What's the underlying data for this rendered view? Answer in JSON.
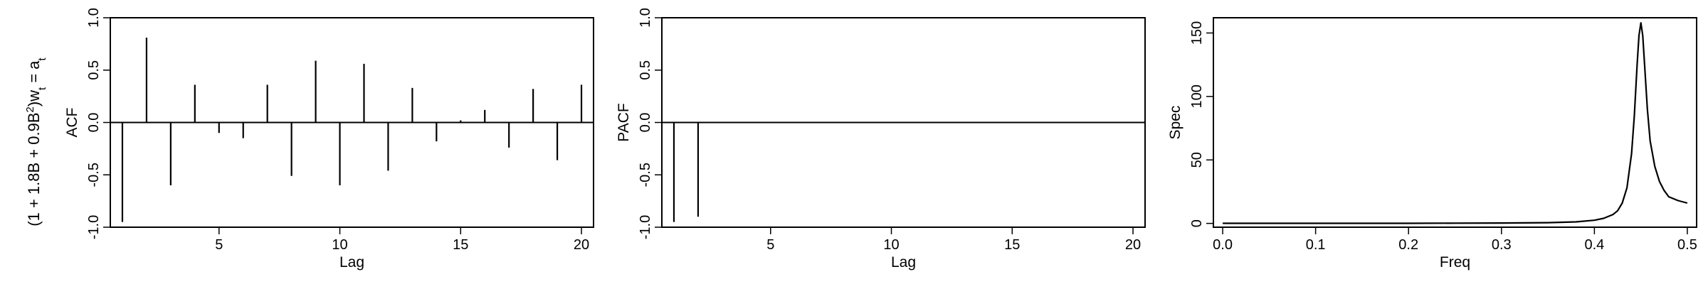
{
  "row_label": {
    "prefix": "(1 + 1.8B + 0.9B",
    "power": "2",
    "middle": ")w",
    "w_sub": "t",
    "eq": " = a",
    "a_sub": "t"
  },
  "chart_data": [
    {
      "type": "bar",
      "style": "spikes",
      "ylabel": "ACF",
      "xlabel": "Lag",
      "xlim": [
        0.5,
        20.5
      ],
      "ylim": [
        -1.0,
        1.0
      ],
      "xticks": [
        "5",
        "10",
        "15",
        "20"
      ],
      "yticks": [
        "-1.0",
        "-0.5",
        "0.0",
        "0.5",
        "1.0"
      ],
      "zero_line": true,
      "grid": false,
      "x": [
        1,
        2,
        3,
        4,
        5,
        6,
        7,
        8,
        9,
        10,
        11,
        12,
        13,
        14,
        15,
        16,
        17,
        18,
        19,
        20
      ],
      "values": [
        -0.95,
        0.81,
        -0.6,
        0.36,
        -0.1,
        -0.15,
        0.36,
        -0.51,
        0.59,
        -0.6,
        0.56,
        -0.46,
        0.33,
        -0.18,
        0.02,
        0.12,
        -0.24,
        0.32,
        -0.36,
        0.36
      ]
    },
    {
      "type": "bar",
      "style": "spikes",
      "ylabel": "PACF",
      "xlabel": "Lag",
      "xlim": [
        0.5,
        20.5
      ],
      "ylim": [
        -1.0,
        1.0
      ],
      "xticks": [
        "5",
        "10",
        "15",
        "20"
      ],
      "yticks": [
        "-1.0",
        "-0.5",
        "0.0",
        "0.5",
        "1.0"
      ],
      "zero_line": true,
      "grid": false,
      "x": [
        1,
        2,
        3,
        4,
        5,
        6,
        7,
        8,
        9,
        10,
        11,
        12,
        13,
        14,
        15,
        16,
        17,
        18,
        19,
        20
      ],
      "values": [
        -0.95,
        -0.9,
        0,
        0,
        0,
        0,
        0,
        0,
        0,
        0,
        0,
        0,
        0,
        0,
        0,
        0,
        0,
        0,
        0,
        0
      ]
    },
    {
      "type": "line",
      "ylabel": "Spec",
      "xlabel": "Freq",
      "xlim": [
        -0.01,
        0.51
      ],
      "ylim": [
        -3,
        162
      ],
      "xticks": [
        "0.0",
        "0.1",
        "0.2",
        "0.3",
        "0.4",
        "0.5"
      ],
      "yticks": [
        "0",
        "50",
        "100",
        "150"
      ],
      "grid": false,
      "x": [
        0.0,
        0.05,
        0.1,
        0.15,
        0.2,
        0.25,
        0.3,
        0.35,
        0.38,
        0.4,
        0.41,
        0.42,
        0.425,
        0.43,
        0.435,
        0.44,
        0.443,
        0.446,
        0.448,
        0.45,
        0.452,
        0.454,
        0.457,
        0.46,
        0.465,
        0.47,
        0.475,
        0.48,
        0.49,
        0.5
      ],
      "values": [
        0.1,
        0.1,
        0.1,
        0.1,
        0.1,
        0.2,
        0.3,
        0.6,
        1.2,
        2.5,
        4.0,
        7.0,
        10.0,
        16.0,
        28.0,
        55.0,
        85.0,
        125.0,
        148.0,
        158.0,
        148.0,
        125.0,
        90.0,
        65.0,
        45.0,
        33.0,
        26.0,
        21.0,
        18.0,
        16.0
      ]
    }
  ]
}
